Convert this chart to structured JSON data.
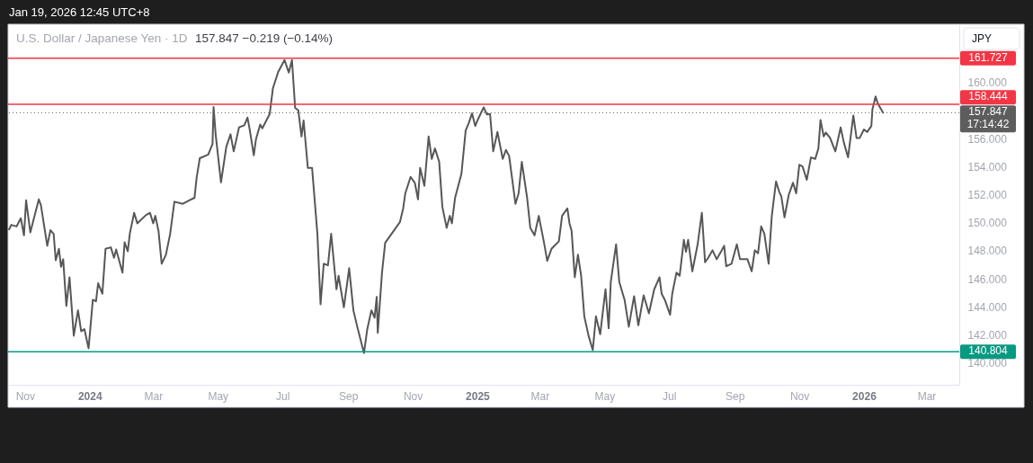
{
  "chart_data": {
    "type": "line",
    "title": "U.S. Dollar / Japanese Yen · 1D",
    "subtitle": "157.847 −0.219 (−0.14%)",
    "ylabel": "JPY",
    "annotations": [
      "Jan 19, 2026 12:45 UTC+8"
    ],
    "x": [
      "2023-10-17",
      "2023-10-19",
      "2023-10-24",
      "2023-10-28",
      "2023-10-31",
      "2023-11-02",
      "2023-11-06",
      "2023-11-14",
      "2023-11-16",
      "2023-11-22",
      "2023-11-25",
      "2023-11-28",
      "2023-11-30",
      "2023-12-03",
      "2023-12-05",
      "2023-12-07",
      "2023-12-10",
      "2023-12-13",
      "2023-12-17",
      "2023-12-21",
      "2023-12-24",
      "2023-12-27",
      "2023-12-31",
      "2024-01-04",
      "2024-01-07",
      "2024-01-09",
      "2024-01-13",
      "2024-01-16",
      "2024-01-21",
      "2024-01-24",
      "2024-01-26",
      "2024-02-01",
      "2024-02-03",
      "2024-02-06",
      "2024-02-08",
      "2024-02-12",
      "2024-02-15",
      "2024-02-23",
      "2024-02-27",
      "2024-03-01",
      "2024-03-03",
      "2024-03-06",
      "2024-03-09",
      "2024-03-13",
      "2024-03-17",
      "2024-03-21",
      "2024-03-29",
      "2024-04-06",
      "2024-04-09",
      "2024-04-11",
      "2024-04-14",
      "2024-04-22",
      "2024-04-26",
      "2024-04-27",
      "2024-04-29",
      "2024-05-04",
      "2024-05-09",
      "2024-05-13",
      "2024-05-16",
      "2024-05-21",
      "2024-05-26",
      "2024-05-29",
      "2024-05-31",
      "2024-06-04",
      "2024-06-06",
      "2024-06-10",
      "2024-06-12",
      "2024-06-19",
      "2024-06-22",
      "2024-06-27",
      "2024-07-03",
      "2024-07-07",
      "2024-07-10",
      "2024-07-13",
      "2024-07-16",
      "2024-07-19",
      "2024-07-21",
      "2024-07-25",
      "2024-07-29",
      "2024-08-03",
      "2024-08-06",
      "2024-08-09",
      "2024-08-13",
      "2024-08-16",
      "2024-08-21",
      "2024-08-23",
      "2024-08-28",
      "2024-09-02",
      "2024-09-06",
      "2024-09-10",
      "2024-09-16",
      "2024-09-19",
      "2024-09-23",
      "2024-09-26",
      "2024-09-28",
      "2024-09-29",
      "2024-10-03",
      "2024-10-06",
      "2024-10-14",
      "2024-10-20",
      "2024-10-23",
      "2024-10-25",
      "2024-10-30",
      "2024-11-03",
      "2024-11-06",
      "2024-11-08",
      "2024-11-12",
      "2024-11-16",
      "2024-11-19",
      "2024-11-22",
      "2024-11-26",
      "2024-11-29",
      "2024-12-03",
      "2024-12-06",
      "2024-12-08",
      "2024-12-11",
      "2024-12-17",
      "2024-12-21",
      "2024-12-24",
      "2024-12-27",
      "2024-12-30",
      "2025-01-02",
      "2025-01-07",
      "2025-01-10",
      "2025-01-13",
      "2025-01-16",
      "2025-01-20",
      "2025-01-25",
      "2025-01-28",
      "2025-01-31",
      "2025-02-06",
      "2025-02-09",
      "2025-02-12",
      "2025-02-17",
      "2025-02-20",
      "2025-02-24",
      "2025-02-28",
      "2025-03-05",
      "2025-03-08",
      "2025-03-12",
      "2025-03-19",
      "2025-03-22",
      "2025-03-27",
      "2025-03-29",
      "2025-03-31",
      "2025-04-03",
      "2025-04-06",
      "2025-04-09",
      "2025-04-12",
      "2025-04-16",
      "2025-04-20",
      "2025-04-23",
      "2025-04-27",
      "2025-05-02",
      "2025-05-05",
      "2025-05-07",
      "2025-05-12",
      "2025-05-15",
      "2025-05-20",
      "2025-05-24",
      "2025-05-29",
      "2025-06-02",
      "2025-06-07",
      "2025-06-12",
      "2025-06-17",
      "2025-06-22",
      "2025-06-24",
      "2025-06-27",
      "2025-07-02",
      "2025-07-04",
      "2025-07-08",
      "2025-07-11",
      "2025-07-15",
      "2025-07-17",
      "2025-07-19",
      "2025-07-23",
      "2025-07-28",
      "2025-08-01",
      "2025-08-04",
      "2025-08-07",
      "2025-08-11",
      "2025-08-15",
      "2025-08-19",
      "2025-08-22",
      "2025-08-24",
      "2025-08-29",
      "2025-09-03",
      "2025-09-06",
      "2025-09-13",
      "2025-09-17",
      "2025-09-20",
      "2025-09-23",
      "2025-09-26",
      "2025-09-29",
      "2025-10-03",
      "2025-10-06",
      "2025-10-10",
      "2025-10-13",
      "2025-10-15",
      "2025-10-18",
      "2025-10-22",
      "2025-10-26",
      "2025-10-29",
      "2025-11-01",
      "2025-11-04",
      "2025-11-08",
      "2025-11-12",
      "2025-11-16",
      "2025-11-19",
      "2025-11-21",
      "2025-11-24",
      "2025-11-26",
      "2025-11-30",
      "2025-12-05",
      "2025-12-10",
      "2025-12-13",
      "2025-12-17",
      "2025-12-22",
      "2025-12-25",
      "2025-12-28",
      "2026-01-01",
      "2026-01-04",
      "2026-01-08",
      "2026-01-09",
      "2026-01-12",
      "2026-01-14",
      "2026-01-19"
    ],
    "series": [
      {
        "color": "#575757",
        "values": [
          149.53,
          149.85,
          149.74,
          150.32,
          149.1,
          151.6,
          149.32,
          151.67,
          151.24,
          148.36,
          149.47,
          149.21,
          147.33,
          148.14,
          146.86,
          147.4,
          144.08,
          146.11,
          141.95,
          143.76,
          142.27,
          142.42,
          141.05,
          144.51,
          144.4,
          145.69,
          144.94,
          148.14,
          148.25,
          147.5,
          148.1,
          146.44,
          148.61,
          147.97,
          149.26,
          150.71,
          149.96,
          150.54,
          150.71,
          149.96,
          150.49,
          149.42,
          147.08,
          147.72,
          149.21,
          151.5,
          151.35,
          151.67,
          151.78,
          153.21,
          154.6,
          154.87,
          155.62,
          158.25,
          156.26,
          152.88,
          155.41,
          156.31,
          155.09,
          156.8,
          156.95,
          157.5,
          156.69,
          154.81,
          155.94,
          157.01,
          156.73,
          157.76,
          159.58,
          160.75,
          161.6,
          160.71,
          161.6,
          158.19,
          158.01,
          156.15,
          157.29,
          153.91,
          153.91,
          149.21,
          144.19,
          147.08,
          146.97,
          149.21,
          145.26,
          146.22,
          143.97,
          146.76,
          143.76,
          142.48,
          140.71,
          142.37,
          143.76,
          143.23,
          144.72,
          142.16,
          146.44,
          148.57,
          149.42,
          150.06,
          151.03,
          152.1,
          153.27,
          152.85,
          151.67,
          153.91,
          152.63,
          156.15,
          154.55,
          155.3,
          154.34,
          151.13,
          149.64,
          150.49,
          149.96,
          151.78,
          153.49,
          156.58,
          157.12,
          157.8,
          156.9,
          157.44,
          158.23,
          157.72,
          157.76,
          155.09,
          156.47,
          154.55,
          155.19,
          154.77,
          151.35,
          152.1,
          154.34,
          151.78,
          149.64,
          149.1,
          150.49,
          148.57,
          147.29,
          148.14,
          148.68,
          150.49,
          151.03,
          149.96,
          149.42,
          146.11,
          147.72,
          146.22,
          143.33,
          141.95,
          140.92,
          143.33,
          142.05,
          145.26,
          142.48,
          145.79,
          148.46,
          145.79,
          144.51,
          142.59,
          144.77,
          142.69,
          144.83,
          143.55,
          145.26,
          146.11,
          144.94,
          144.51,
          143.44,
          144.94,
          146.44,
          146.22,
          148.78,
          147.93,
          148.78,
          146.54,
          148.46,
          150.71,
          147.18,
          147.5,
          148.04,
          147.4,
          147.93,
          148.36,
          146.9,
          147.08,
          148.46,
          147.4,
          147.4,
          146.54,
          148.04,
          147.82,
          149.74,
          149.21,
          147.08,
          150.49,
          152.95,
          152.21,
          151.88,
          150.38,
          151.99,
          152.85,
          152.1,
          154.13,
          154.02,
          153.06,
          154.66,
          154.55,
          155.3,
          157.33,
          156.15,
          156.43,
          156.05,
          155.09,
          156.8,
          155.73,
          154.66,
          157.65,
          156.05,
          156.05,
          156.65,
          156.47,
          156.9,
          158.08,
          159.0,
          158.51,
          157.847
        ]
      }
    ],
    "xlim": [
      "2023-10-16",
      "2026-04-01"
    ],
    "ylim": [
      138.45,
      164.15
    ],
    "xticks": [
      {
        "value": "2023-11-01",
        "label": "Nov"
      },
      {
        "value": "2024-01-01",
        "label": "2024"
      },
      {
        "value": "2024-03-01",
        "label": "Mar"
      },
      {
        "value": "2024-05-01",
        "label": "May"
      },
      {
        "value": "2024-07-01",
        "label": "Jul"
      },
      {
        "value": "2024-09-01",
        "label": "Sep"
      },
      {
        "value": "2024-11-01",
        "label": "Nov"
      },
      {
        "value": "2025-01-01",
        "label": "2025"
      },
      {
        "value": "2025-03-01",
        "label": "Mar"
      },
      {
        "value": "2025-05-01",
        "label": "May"
      },
      {
        "value": "2025-07-01",
        "label": "Jul"
      },
      {
        "value": "2025-09-01",
        "label": "Sep"
      },
      {
        "value": "2025-11-01",
        "label": "Nov"
      },
      {
        "value": "2026-01-01",
        "label": "2026"
      },
      {
        "value": "2026-03-01",
        "label": "Mar"
      }
    ],
    "yticks": [
      {
        "value": 140,
        "label": "140.000"
      },
      {
        "value": 142,
        "label": "142.000"
      },
      {
        "value": 144,
        "label": "144.000"
      },
      {
        "value": 146,
        "label": "146.000"
      },
      {
        "value": 148,
        "label": "148.000"
      },
      {
        "value": 150,
        "label": "150.000"
      },
      {
        "value": 152,
        "label": "152.000"
      },
      {
        "value": 154,
        "label": "154.000"
      },
      {
        "value": 156,
        "label": "156.000"
      },
      {
        "value": 160,
        "label": "160.000"
      }
    ],
    "ref_lines": [
      {
        "axis": "y",
        "value": 161.727,
        "label": "161.727",
        "color": "#f23645"
      },
      {
        "axis": "y",
        "value": 158.444,
        "label": "158.444",
        "color": "#f23645"
      },
      {
        "axis": "y",
        "value": 157.847,
        "label": "157.847\n17:14:42",
        "color": "#5d5d5d",
        "line_style": "dotted"
      },
      {
        "axis": "y",
        "value": 140.804,
        "label": "140.804",
        "color": "#089981"
      }
    ]
  }
}
